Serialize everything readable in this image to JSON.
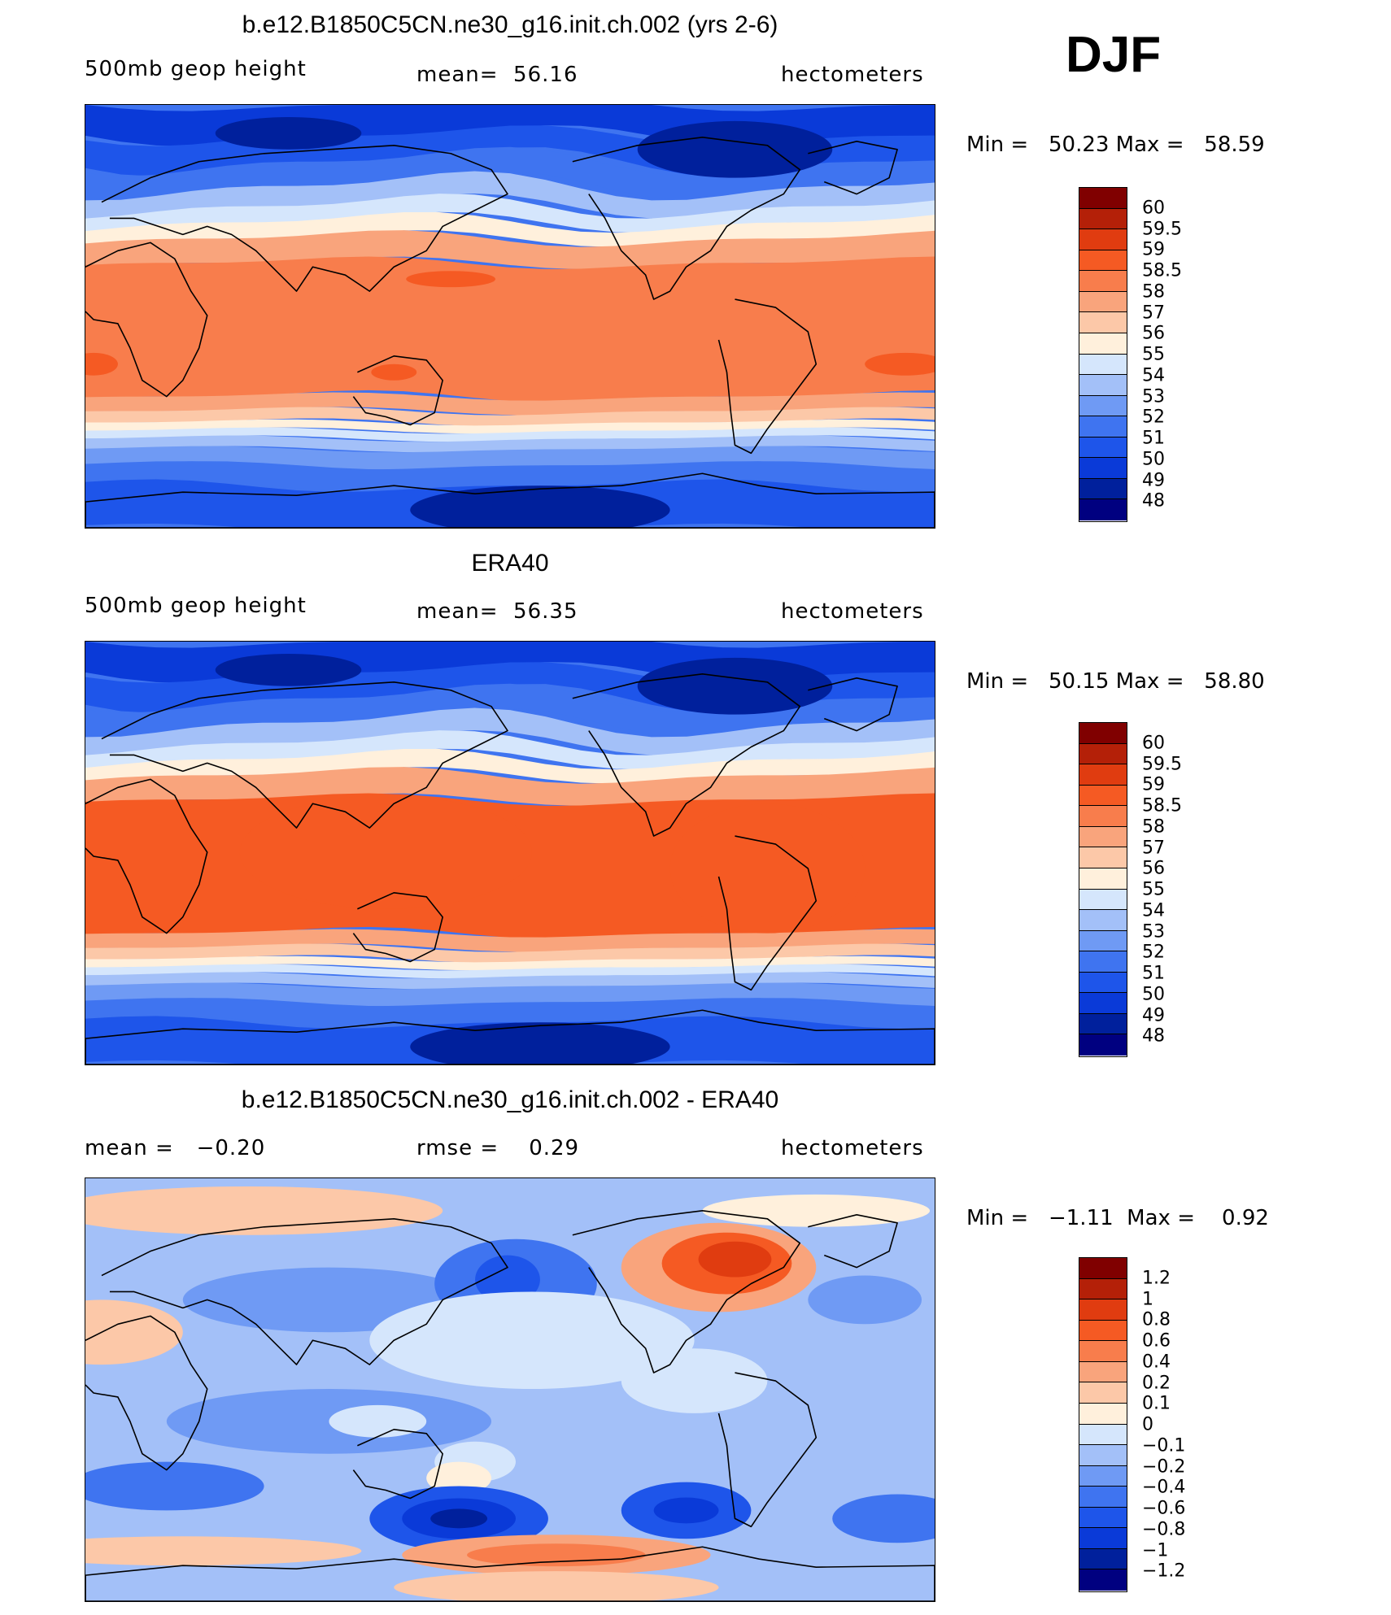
{
  "season": "DJF",
  "palette": [
    "#000080",
    "#00209c",
    "#0a3ad8",
    "#1e55ea",
    "#3f74f0",
    "#6f9af4",
    "#a3c0f8",
    "#d5e6fc",
    "#fff0dc",
    "#fcc8a8",
    "#f9a47c",
    "#f87d4c",
    "#f55a23",
    "#e03c10",
    "#b42008",
    "#800000"
  ],
  "land_outline_color": "#000000",
  "chart_data": [
    {
      "type": "heatmap",
      "title": "b.e12.B1850C5CN.ne30_g16.init.ch.002 (yrs 2-6)",
      "field_label": "500mb geop height",
      "stat_text": "mean=  56.16",
      "units": "hectometers",
      "minmax_text": "Min =   50.23 Max =   58.59",
      "min": 50.23,
      "max": 58.59,
      "mean": 56.16,
      "colorbar_labels": [
        "60",
        "59.5",
        "59",
        "58.5",
        "58",
        "57",
        "56",
        "55",
        "54",
        "53",
        "52",
        "51",
        "50",
        "49",
        "48"
      ],
      "variant": "model"
    },
    {
      "type": "heatmap",
      "title": "ERA40",
      "field_label": "500mb geop height",
      "stat_text": "mean=  56.35",
      "units": "hectometers",
      "minmax_text": "Min =   50.15 Max =   58.80",
      "min": 50.15,
      "max": 58.8,
      "mean": 56.35,
      "colorbar_labels": [
        "60",
        "59.5",
        "59",
        "58.5",
        "58",
        "57",
        "56",
        "55",
        "54",
        "53",
        "52",
        "51",
        "50",
        "49",
        "48"
      ],
      "variant": "obs"
    },
    {
      "type": "heatmap",
      "title": "b.e12.B1850C5CN.ne30_g16.init.ch.002 - ERA40",
      "field_label": "mean =   −0.20",
      "stat_text": "rmse =    0.29",
      "units": "hectometers",
      "minmax_text": "Min =   −1.11  Max =    0.92",
      "min": -1.11,
      "max": 0.92,
      "mean": -0.2,
      "rmse": 0.29,
      "colorbar_labels": [
        "1.2",
        "1",
        "0.8",
        "0.6",
        "0.4",
        "0.2",
        "0.1",
        "0",
        "−0.1",
        "−0.2",
        "−0.4",
        "−0.6",
        "−0.8",
        "−1",
        "−1.2"
      ],
      "variant": "diff"
    }
  ]
}
